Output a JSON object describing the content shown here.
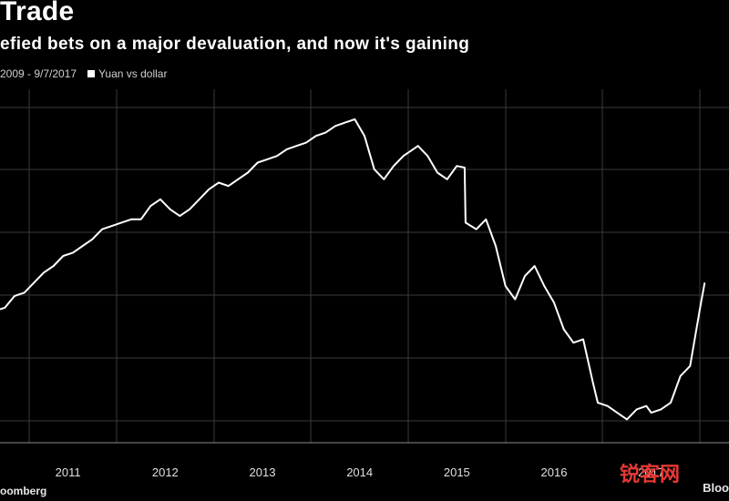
{
  "header": {
    "title": "Trade",
    "subtitle": "efied bets on a major devaluation, and now it's gaining",
    "date_range": "2009 - 9/7/2017",
    "legend_label": "Yuan vs dollar"
  },
  "footer": {
    "source": "oomberg",
    "brand": "Bloo",
    "watermark": "锐客网"
  },
  "colors": {
    "background": "#000000",
    "line": "#ffffff",
    "grid": "#3a3a3a",
    "watermark": "#e53935"
  },
  "chart_data": {
    "type": "line",
    "title": "Trade",
    "xlabel": "",
    "ylabel": "",
    "grid": true,
    "legend": "top-left",
    "x_ticks": [
      "2011",
      "2012",
      "2013",
      "2014",
      "2015",
      "2016",
      "2017"
    ],
    "xlim": [
      2010.3,
      2017.8
    ],
    "y_direction": "inverted",
    "series": [
      {
        "name": "Yuan vs dollar",
        "x": [
          2010.3,
          2010.35,
          2010.45,
          2010.55,
          2010.65,
          2010.75,
          2010.85,
          2010.95,
          2011.05,
          2011.15,
          2011.25,
          2011.35,
          2011.45,
          2011.55,
          2011.65,
          2011.75,
          2011.85,
          2011.95,
          2012.05,
          2012.15,
          2012.25,
          2012.35,
          2012.45,
          2012.55,
          2012.65,
          2012.75,
          2012.85,
          2012.95,
          2013.05,
          2013.15,
          2013.25,
          2013.35,
          2013.45,
          2013.55,
          2013.65,
          2013.75,
          2013.85,
          2013.95,
          2014.05,
          2014.15,
          2014.25,
          2014.35,
          2014.45,
          2014.55,
          2014.6,
          2014.7,
          2014.8,
          2014.9,
          2015.0,
          2015.08,
          2015.09,
          2015.2,
          2015.3,
          2015.4,
          2015.5,
          2015.6,
          2015.7,
          2015.8,
          2015.9,
          2016.0,
          2016.1,
          2016.2,
          2016.3,
          2016.4,
          2016.45,
          2016.55,
          2016.65,
          2016.75,
          2016.85,
          2016.95,
          2017.0,
          2017.1,
          2017.2,
          2017.3,
          2017.4,
          2017.5,
          2017.55
        ],
        "values": [
          6.62,
          6.615,
          6.58,
          6.57,
          6.54,
          6.51,
          6.49,
          6.46,
          6.45,
          6.43,
          6.41,
          6.38,
          6.37,
          6.36,
          6.35,
          6.35,
          6.31,
          6.29,
          6.32,
          6.34,
          6.32,
          6.29,
          6.26,
          6.24,
          6.25,
          6.23,
          6.21,
          6.18,
          6.17,
          6.16,
          6.14,
          6.13,
          6.12,
          6.1,
          6.09,
          6.07,
          6.06,
          6.05,
          6.1,
          6.2,
          6.23,
          6.19,
          6.16,
          6.14,
          6.13,
          6.16,
          6.21,
          6.23,
          6.19,
          6.195,
          6.36,
          6.38,
          6.35,
          6.43,
          6.55,
          6.59,
          6.52,
          6.49,
          6.55,
          6.6,
          6.68,
          6.72,
          6.71,
          6.84,
          6.9,
          6.91,
          6.93,
          6.95,
          6.92,
          6.91,
          6.93,
          6.92,
          6.9,
          6.82,
          6.79,
          6.62,
          6.54
        ],
        "ylim": [
          5.96,
          7.02
        ]
      }
    ]
  }
}
